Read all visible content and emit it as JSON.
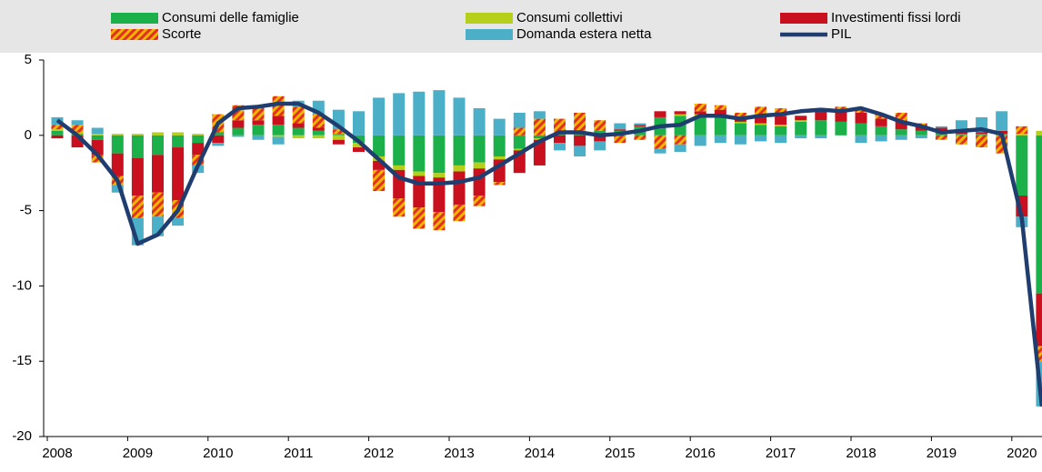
{
  "chart_data": {
    "type": "bar",
    "categories": [
      "2008",
      null,
      null,
      null,
      "2009",
      null,
      null,
      null,
      "2010",
      null,
      null,
      null,
      "2011",
      null,
      null,
      null,
      "2012",
      null,
      null,
      null,
      "2013",
      null,
      null,
      null,
      "2014",
      null,
      null,
      null,
      "2015",
      null,
      null,
      null,
      "2016",
      null,
      null,
      null,
      "2017",
      null,
      null,
      null,
      "2018",
      null,
      null,
      null,
      "2019",
      null,
      null,
      null,
      "2020",
      null
    ],
    "series": [
      {
        "name": "Consumi delle famiglie",
        "color": "#1cb04b",
        "values": [
          0.3,
          0.1,
          -0.3,
          -1.2,
          -1.5,
          -1.3,
          -0.8,
          -0.5,
          0.2,
          0.5,
          0.7,
          0.7,
          0.5,
          0.3,
          0.1,
          -0.5,
          -1.4,
          -2.0,
          -2.4,
          -2.5,
          -2.0,
          -1.8,
          -1.4,
          -0.9,
          -0.2,
          0.1,
          0.2,
          0.3,
          0.3,
          0.6,
          1.2,
          1.3,
          1.3,
          1.2,
          0.8,
          0.7,
          0.6,
          0.9,
          1.0,
          0.9,
          0.8,
          0.6,
          0.4,
          0.3,
          0.2,
          0.1,
          0.1,
          0.1,
          -4.0,
          -10.5
        ]
      },
      {
        "name": "Consumi collettivi",
        "color": "#b5cf1a",
        "values": [
          0.1,
          0.1,
          0.1,
          0.1,
          0.1,
          0.2,
          0.2,
          0.1,
          0.0,
          0.0,
          0.0,
          -0.1,
          -0.2,
          -0.2,
          -0.3,
          -0.3,
          -0.3,
          -0.3,
          -0.3,
          -0.3,
          -0.4,
          -0.4,
          -0.2,
          -0.1,
          -0.1,
          0.0,
          0.0,
          0.0,
          0.0,
          0.0,
          0.0,
          0.1,
          0.1,
          0.1,
          0.1,
          0.1,
          0.1,
          0.1,
          0.0,
          0.0,
          0.0,
          0.0,
          0.0,
          0.0,
          0.0,
          0.0,
          0.0,
          0.0,
          0.1,
          0.3
        ]
      },
      {
        "name": "Investimenti fissi lordi",
        "color": "#c8101e",
        "values": [
          -0.2,
          -0.8,
          -1.0,
          -1.5,
          -2.5,
          -2.5,
          -3.5,
          -0.8,
          -0.5,
          0.5,
          0.3,
          0.6,
          0.3,
          0.2,
          -0.3,
          -0.3,
          -0.6,
          -1.9,
          -2.1,
          -2.3,
          -2.2,
          -1.8,
          -1.5,
          -1.5,
          -1.7,
          -0.5,
          -0.7,
          -0.4,
          0.1,
          0.1,
          0.4,
          0.2,
          0.2,
          0.4,
          0.3,
          0.5,
          0.6,
          0.3,
          0.6,
          0.7,
          0.7,
          0.5,
          0.5,
          0.3,
          0.3,
          0.1,
          0.1,
          0.2,
          -1.4,
          -3.5
        ]
      },
      {
        "name": "Scorte",
        "color": "#f5b400",
        "pattern": "hatch",
        "hatch_color": "#e0301e",
        "values": [
          0.3,
          0.5,
          -0.5,
          -0.6,
          -1.5,
          -1.6,
          -1.2,
          -0.7,
          1.2,
          1.0,
          1.0,
          1.3,
          1.1,
          0.9,
          0.3,
          0.0,
          -1.4,
          -1.2,
          -1.4,
          -1.2,
          -1.1,
          -0.7,
          -0.2,
          0.5,
          1.1,
          1.0,
          1.3,
          0.7,
          -0.5,
          -0.3,
          -0.9,
          -0.6,
          0.5,
          0.3,
          0.3,
          0.6,
          0.5,
          0.0,
          0.2,
          0.3,
          0.3,
          0.3,
          0.6,
          0.2,
          -0.3,
          -0.6,
          -0.8,
          -1.2,
          0.5,
          -1.0
        ]
      },
      {
        "name": "Domanda estera netta",
        "color": "#4bafc8",
        "values": [
          0.5,
          0.3,
          0.4,
          -0.5,
          -1.8,
          -1.3,
          -0.5,
          -0.5,
          -0.2,
          -0.1,
          -0.3,
          -0.5,
          0.4,
          0.9,
          1.3,
          1.6,
          2.5,
          2.8,
          2.9,
          3.0,
          2.5,
          1.8,
          1.1,
          1.0,
          0.5,
          -0.5,
          -0.7,
          -0.6,
          0.4,
          0.1,
          -0.3,
          -0.5,
          -0.7,
          -0.5,
          -0.6,
          -0.4,
          -0.5,
          -0.2,
          -0.2,
          0.0,
          -0.5,
          -0.4,
          -0.3,
          -0.2,
          0.1,
          0.8,
          1.0,
          1.3,
          -0.7,
          -3.0
        ]
      },
      {
        "name": "PIL",
        "color": "#1f3d6e",
        "kind": "line",
        "values": [
          1.0,
          0.0,
          -1.3,
          -3.0,
          -7.2,
          -6.6,
          -5.0,
          -2.0,
          0.8,
          1.8,
          1.9,
          2.1,
          2.1,
          1.5,
          0.6,
          -0.4,
          -1.6,
          -2.8,
          -3.2,
          -3.2,
          -3.1,
          -2.8,
          -2.0,
          -1.2,
          -0.4,
          0.2,
          0.2,
          0.0,
          0.1,
          0.3,
          0.6,
          0.7,
          1.3,
          1.3,
          1.1,
          1.3,
          1.4,
          1.6,
          1.7,
          1.6,
          1.8,
          1.4,
          0.9,
          0.6,
          0.2,
          0.3,
          0.4,
          0.1,
          -5.5,
          -18.0
        ]
      }
    ],
    "ylim": [
      -20,
      5
    ],
    "yticks": [
      5,
      0,
      -5,
      -10,
      -15,
      -20
    ]
  }
}
